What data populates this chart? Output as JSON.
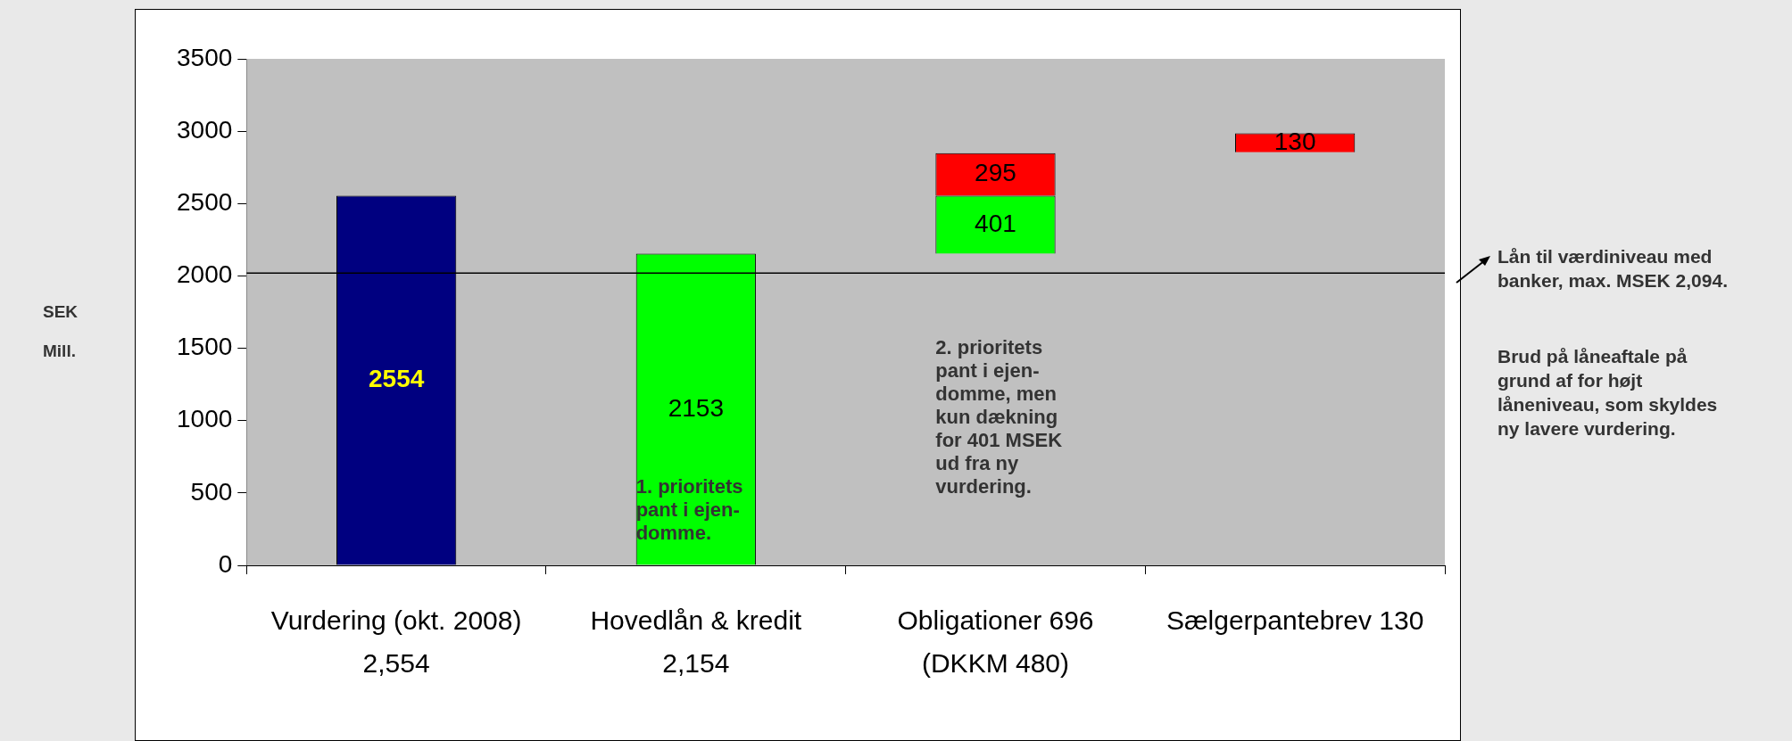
{
  "chart_data": {
    "type": "bar",
    "categories": [
      "Vurdering (okt. 2008) 2,554",
      "Hovedlån & kredit 2,154",
      "Obligationer 696 (DKKM 480)",
      "Sælgerpantebrev 130"
    ],
    "series": [
      {
        "color": "#000080",
        "values": [
          2554,
          null,
          null,
          null
        ],
        "base": [
          0,
          null,
          null,
          null
        ]
      },
      {
        "color": "#00ff00",
        "values": [
          null,
          2153,
          401,
          null
        ],
        "base": [
          null,
          0,
          2153,
          null
        ]
      },
      {
        "color": "#ff0000",
        "values": [
          null,
          null,
          295,
          130
        ],
        "base": [
          null,
          null,
          2554,
          2855
        ]
      }
    ],
    "ylabel": "SEK Mill.",
    "ylim": [
      0,
      3500
    ],
    "yticks": [
      0,
      500,
      1000,
      1500,
      2000,
      2500,
      3000,
      3500
    ],
    "grid": false,
    "legend": false,
    "data_labels": true,
    "ref_lines": [
      {
        "axis": "y",
        "value": 2020,
        "label": "Lån til værdiniveau med banker,  max. MSEK 2,094.",
        "color": "#000000"
      }
    ],
    "annotations": [
      "1. prioritets pant i ejen-domme.",
      "2. prioritets pant i ejen-domme, men kun dækning for 401 MSEK ud fra ny vurdering.",
      "Brud på låneaftale på grund af for højt låneniveau, som skyldes ny lavere vurdering."
    ]
  }
}
